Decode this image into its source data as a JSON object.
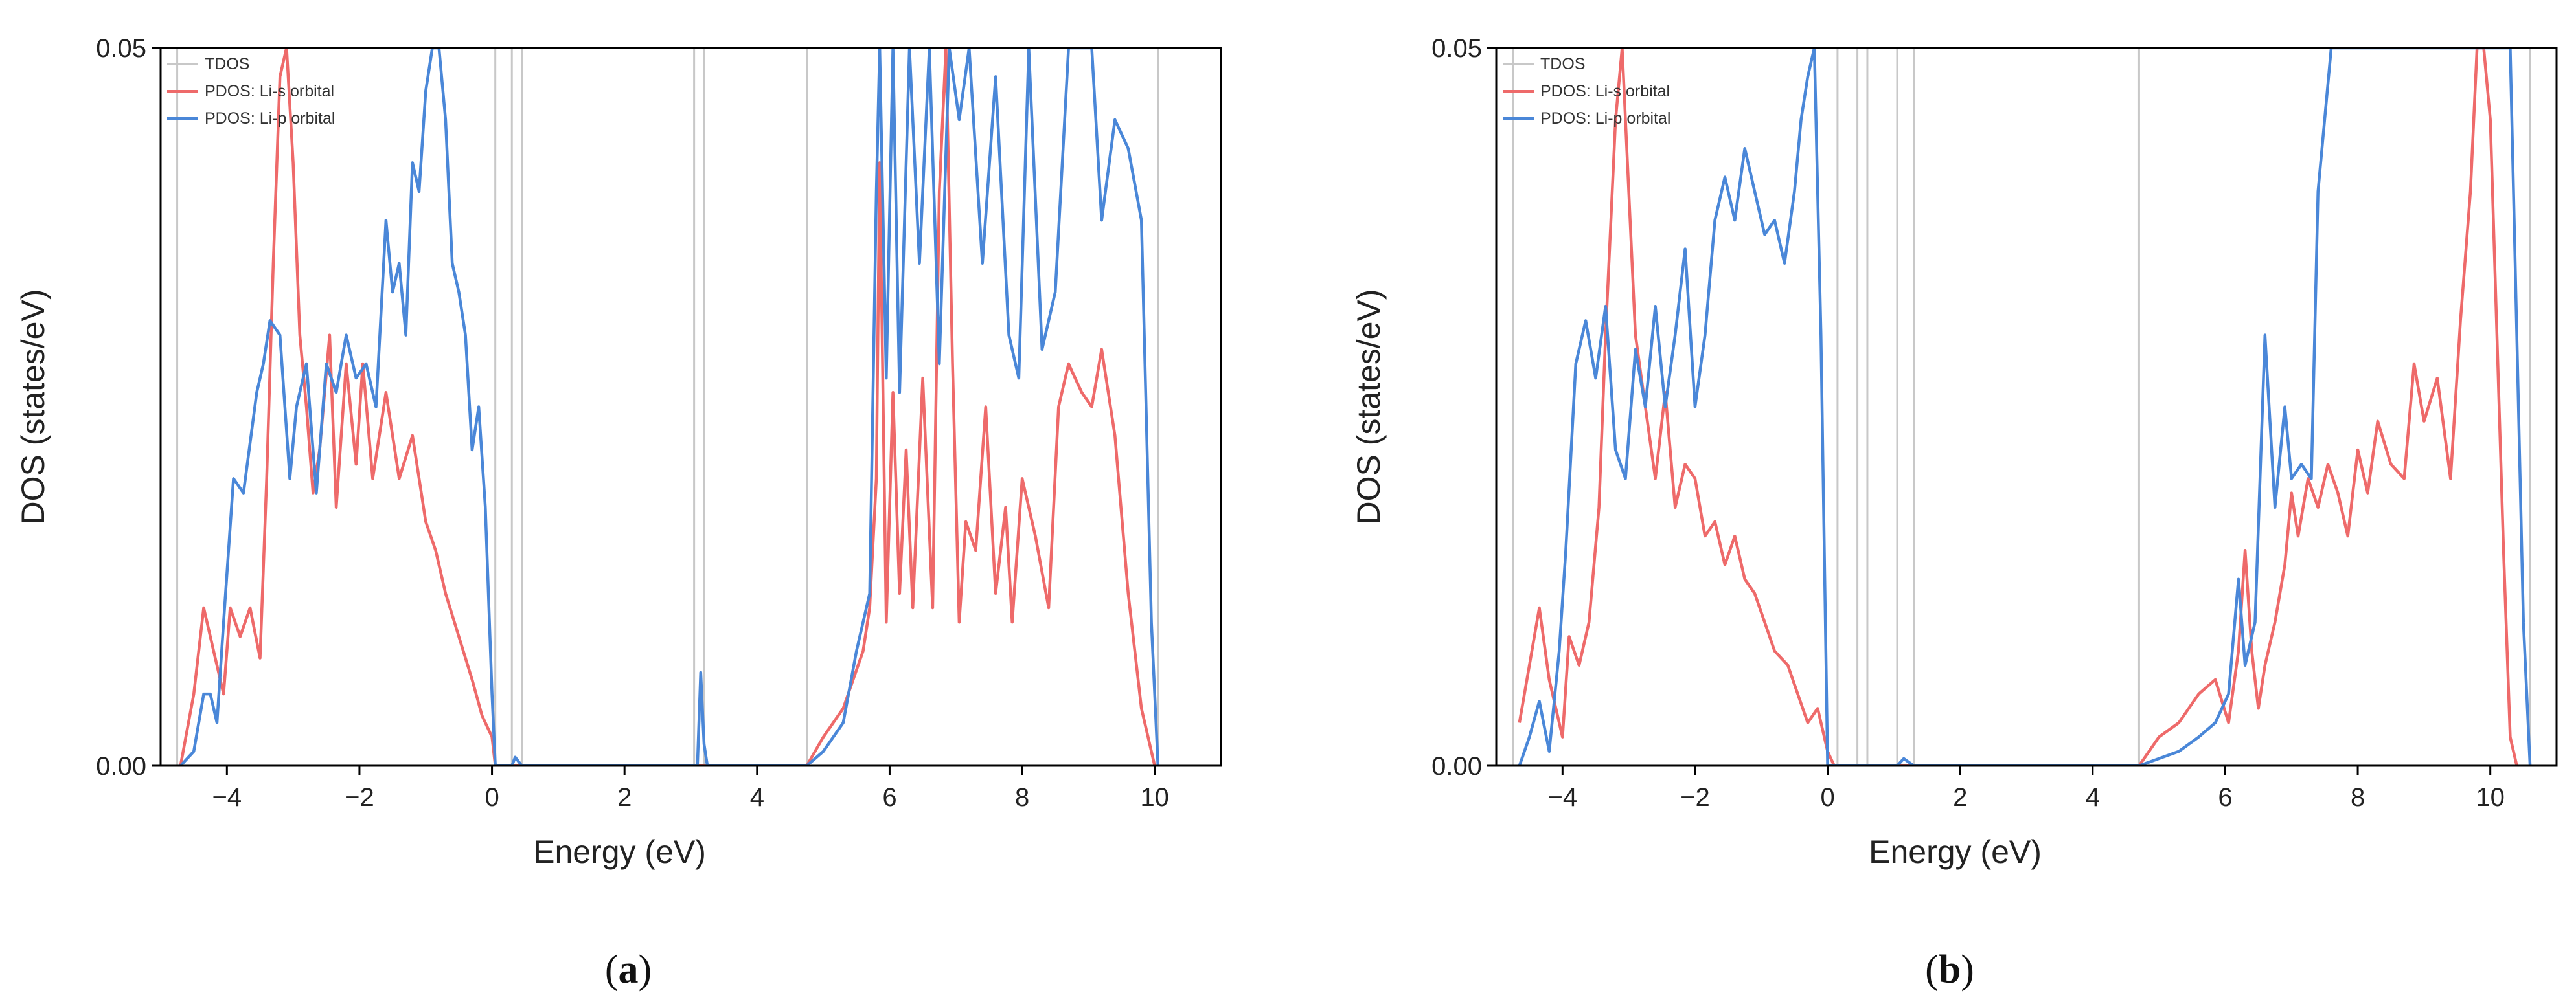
{
  "chart_data": [
    {
      "type": "line",
      "panel_label": "a",
      "xlabel": "Energy (eV)",
      "ylabel": "DOS (states/eV)",
      "xlim": [
        -5,
        11
      ],
      "ylim": [
        0,
        0.05
      ],
      "xticks": [
        -4,
        -2,
        0,
        2,
        4,
        6,
        8,
        10
      ],
      "yticks": [
        0.0,
        0.05
      ],
      "ytick_labels": [
        "0.00",
        "0.05"
      ],
      "legend": [
        "TDOS",
        "PDOS: Li-s orbital",
        "PDOS: Li-p orbital"
      ],
      "legend_position": "top-left",
      "series": [
        {
          "name": "TDOS",
          "color": "#c8c8c8",
          "type": "vertical-lines",
          "x": [
            -4.75,
            0.05,
            0.3,
            0.45,
            3.05,
            3.2,
            4.75,
            10.05
          ]
        },
        {
          "name": "PDOS: Li-s orbital",
          "color": "#ee6a6a",
          "x": [
            -4.7,
            -4.5,
            -4.35,
            -4.2,
            -4.05,
            -3.95,
            -3.8,
            -3.65,
            -3.5,
            -3.4,
            -3.3,
            -3.2,
            -3.1,
            -3.0,
            -2.9,
            -2.8,
            -2.7,
            -2.6,
            -2.45,
            -2.35,
            -2.2,
            -2.05,
            -1.95,
            -1.8,
            -1.6,
            -1.4,
            -1.2,
            -1.0,
            -0.85,
            -0.7,
            -0.5,
            -0.3,
            -0.15,
            0.0,
            0.05,
            4.75,
            5.0,
            5.3,
            5.6,
            5.7,
            5.8,
            5.85,
            5.95,
            6.05,
            6.15,
            6.25,
            6.35,
            6.5,
            6.65,
            6.75,
            6.85,
            6.95,
            7.05,
            7.15,
            7.3,
            7.45,
            7.6,
            7.75,
            7.85,
            8.0,
            8.2,
            8.4,
            8.55,
            8.7,
            8.9,
            9.05,
            9.2,
            9.4,
            9.6,
            9.8,
            10.0
          ],
          "values": [
            0.0,
            0.005,
            0.011,
            0.008,
            0.005,
            0.011,
            0.009,
            0.011,
            0.0075,
            0.02,
            0.035,
            0.048,
            0.05,
            0.042,
            0.03,
            0.025,
            0.019,
            0.022,
            0.03,
            0.018,
            0.028,
            0.021,
            0.028,
            0.02,
            0.026,
            0.02,
            0.023,
            0.017,
            0.015,
            0.012,
            0.009,
            0.006,
            0.0035,
            0.002,
            0.0,
            0.0,
            0.002,
            0.004,
            0.008,
            0.011,
            0.02,
            0.042,
            0.01,
            0.026,
            0.012,
            0.022,
            0.011,
            0.027,
            0.011,
            0.04,
            0.05,
            0.028,
            0.01,
            0.017,
            0.015,
            0.025,
            0.012,
            0.018,
            0.01,
            0.02,
            0.016,
            0.011,
            0.025,
            0.028,
            0.026,
            0.025,
            0.029,
            0.023,
            0.012,
            0.004,
            0.0
          ]
        },
        {
          "name": "PDOS: Li-p orbital",
          "color": "#4a87d8",
          "x": [
            -4.7,
            -4.5,
            -4.35,
            -4.25,
            -4.15,
            -4.05,
            -3.9,
            -3.75,
            -3.55,
            -3.45,
            -3.35,
            -3.2,
            -3.05,
            -2.95,
            -2.8,
            -2.65,
            -2.5,
            -2.35,
            -2.2,
            -2.05,
            -1.9,
            -1.75,
            -1.6,
            -1.5,
            -1.4,
            -1.3,
            -1.2,
            -1.1,
            -1.0,
            -0.9,
            -0.8,
            -0.7,
            -0.6,
            -0.5,
            -0.4,
            -0.3,
            -0.2,
            -0.1,
            0.0,
            0.05,
            0.3,
            0.35,
            0.45,
            3.1,
            3.15,
            3.2,
            3.25,
            4.75,
            5.0,
            5.3,
            5.5,
            5.7,
            5.8,
            5.85,
            5.95,
            6.05,
            6.15,
            6.3,
            6.45,
            6.6,
            6.75,
            6.9,
            7.05,
            7.2,
            7.4,
            7.6,
            7.8,
            7.95,
            8.1,
            8.3,
            8.5,
            8.7,
            8.9,
            9.05,
            9.2,
            9.4,
            9.6,
            9.8,
            9.95,
            10.05
          ],
          "values": [
            0.0,
            0.001,
            0.005,
            0.005,
            0.003,
            0.01,
            0.02,
            0.019,
            0.026,
            0.028,
            0.031,
            0.03,
            0.02,
            0.025,
            0.028,
            0.019,
            0.028,
            0.026,
            0.03,
            0.027,
            0.028,
            0.025,
            0.038,
            0.033,
            0.035,
            0.03,
            0.042,
            0.04,
            0.047,
            0.05,
            0.05,
            0.045,
            0.035,
            0.033,
            0.03,
            0.022,
            0.025,
            0.018,
            0.005,
            0.0,
            0.0,
            0.0006,
            0.0,
            0.0,
            0.0065,
            0.0015,
            0.0,
            0.0,
            0.001,
            0.003,
            0.008,
            0.012,
            0.04,
            0.05,
            0.027,
            0.05,
            0.026,
            0.05,
            0.035,
            0.05,
            0.028,
            0.05,
            0.045,
            0.05,
            0.035,
            0.048,
            0.03,
            0.027,
            0.05,
            0.029,
            0.033,
            0.05,
            0.05,
            0.05,
            0.038,
            0.045,
            0.043,
            0.038,
            0.01,
            0.0
          ]
        }
      ]
    },
    {
      "type": "line",
      "panel_label": "b",
      "xlabel": "Energy (eV)",
      "ylabel": "DOS (states/eV)",
      "xlim": [
        -5,
        11
      ],
      "ylim": [
        0,
        0.05
      ],
      "xticks": [
        -4,
        -2,
        0,
        2,
        4,
        6,
        8,
        10
      ],
      "yticks": [
        0.0,
        0.05
      ],
      "ytick_labels": [
        "0.00",
        "0.05"
      ],
      "legend": [
        "TDOS",
        "PDOS: Li-s orbital",
        "PDOS: Li-p orbital"
      ],
      "legend_position": "top-left",
      "series": [
        {
          "name": "TDOS",
          "color": "#c8c8c8",
          "type": "vertical-lines",
          "x": [
            -4.75,
            0.15,
            0.45,
            0.6,
            1.05,
            1.3,
            4.7,
            10.6
          ]
        },
        {
          "name": "PDOS: Li-s orbital",
          "color": "#ee6a6a",
          "x": [
            -4.65,
            -4.5,
            -4.35,
            -4.2,
            -4.0,
            -3.9,
            -3.75,
            -3.6,
            -3.45,
            -3.35,
            -3.2,
            -3.1,
            -3.0,
            -2.9,
            -2.75,
            -2.6,
            -2.45,
            -2.3,
            -2.15,
            -2.0,
            -1.85,
            -1.7,
            -1.55,
            -1.4,
            -1.25,
            -1.1,
            -0.95,
            -0.8,
            -0.6,
            -0.45,
            -0.3,
            -0.15,
            0.0,
            0.1,
            0.2,
            0.3,
            0.45,
            4.7,
            5.0,
            5.3,
            5.6,
            5.85,
            6.05,
            6.2,
            6.3,
            6.4,
            6.5,
            6.6,
            6.75,
            6.9,
            7.0,
            7.1,
            7.25,
            7.4,
            7.55,
            7.7,
            7.85,
            8.0,
            8.15,
            8.3,
            8.5,
            8.7,
            8.85,
            9.0,
            9.2,
            9.4,
            9.55,
            9.7,
            9.8,
            9.9,
            10.0,
            10.1,
            10.2,
            10.3,
            10.4
          ],
          "values": [
            0.003,
            0.007,
            0.011,
            0.006,
            0.002,
            0.009,
            0.007,
            0.01,
            0.018,
            0.03,
            0.045,
            0.05,
            0.04,
            0.03,
            0.025,
            0.02,
            0.026,
            0.018,
            0.021,
            0.02,
            0.016,
            0.017,
            0.014,
            0.016,
            0.013,
            0.012,
            0.01,
            0.008,
            0.007,
            0.005,
            0.003,
            0.004,
            0.001,
            0.0,
            0.0,
            0.0,
            0.0,
            0.0,
            0.002,
            0.003,
            0.005,
            0.006,
            0.003,
            0.008,
            0.015,
            0.008,
            0.004,
            0.007,
            0.01,
            0.014,
            0.019,
            0.016,
            0.02,
            0.018,
            0.021,
            0.019,
            0.016,
            0.022,
            0.019,
            0.024,
            0.021,
            0.02,
            0.028,
            0.024,
            0.027,
            0.02,
            0.031,
            0.04,
            0.05,
            0.05,
            0.045,
            0.03,
            0.015,
            0.002,
            0.0
          ]
        },
        {
          "name": "PDOS: Li-p orbital",
          "color": "#4a87d8",
          "x": [
            -4.65,
            -4.5,
            -4.35,
            -4.2,
            -4.05,
            -3.95,
            -3.8,
            -3.65,
            -3.5,
            -3.35,
            -3.2,
            -3.05,
            -2.9,
            -2.75,
            -2.6,
            -2.45,
            -2.3,
            -2.15,
            -2.0,
            -1.85,
            -1.7,
            -1.55,
            -1.4,
            -1.25,
            -1.1,
            -0.95,
            -0.8,
            -0.65,
            -0.5,
            -0.4,
            -0.3,
            -0.2,
            -0.1,
            0.0,
            0.1,
            0.2,
            0.3,
            0.45,
            0.55,
            0.65,
            1.05,
            1.15,
            1.3,
            4.7,
            5.0,
            5.3,
            5.6,
            5.85,
            6.05,
            6.2,
            6.3,
            6.45,
            6.6,
            6.75,
            6.9,
            7.0,
            7.15,
            7.3,
            7.4,
            7.5,
            7.6,
            8.0,
            8.5,
            9.0,
            9.5,
            9.8,
            10.0,
            10.2,
            10.3,
            10.4,
            10.5,
            10.6
          ],
          "values": [
            0.0,
            0.002,
            0.0045,
            0.001,
            0.008,
            0.015,
            0.028,
            0.031,
            0.027,
            0.032,
            0.022,
            0.02,
            0.029,
            0.025,
            0.032,
            0.025,
            0.03,
            0.036,
            0.025,
            0.03,
            0.038,
            0.041,
            0.038,
            0.043,
            0.04,
            0.037,
            0.038,
            0.035,
            0.04,
            0.045,
            0.048,
            0.05,
            0.03,
            0.0,
            0.0,
            0.0,
            0.0,
            0.0,
            0.0,
            0.0,
            0.0,
            0.0005,
            0.0,
            0.0,
            0.0005,
            0.001,
            0.002,
            0.003,
            0.005,
            0.013,
            0.007,
            0.01,
            0.03,
            0.018,
            0.025,
            0.02,
            0.021,
            0.02,
            0.04,
            0.045,
            0.05,
            0.05,
            0.05,
            0.05,
            0.05,
            0.05,
            0.05,
            0.05,
            0.05,
            0.03,
            0.01,
            0.0
          ]
        }
      ]
    }
  ]
}
